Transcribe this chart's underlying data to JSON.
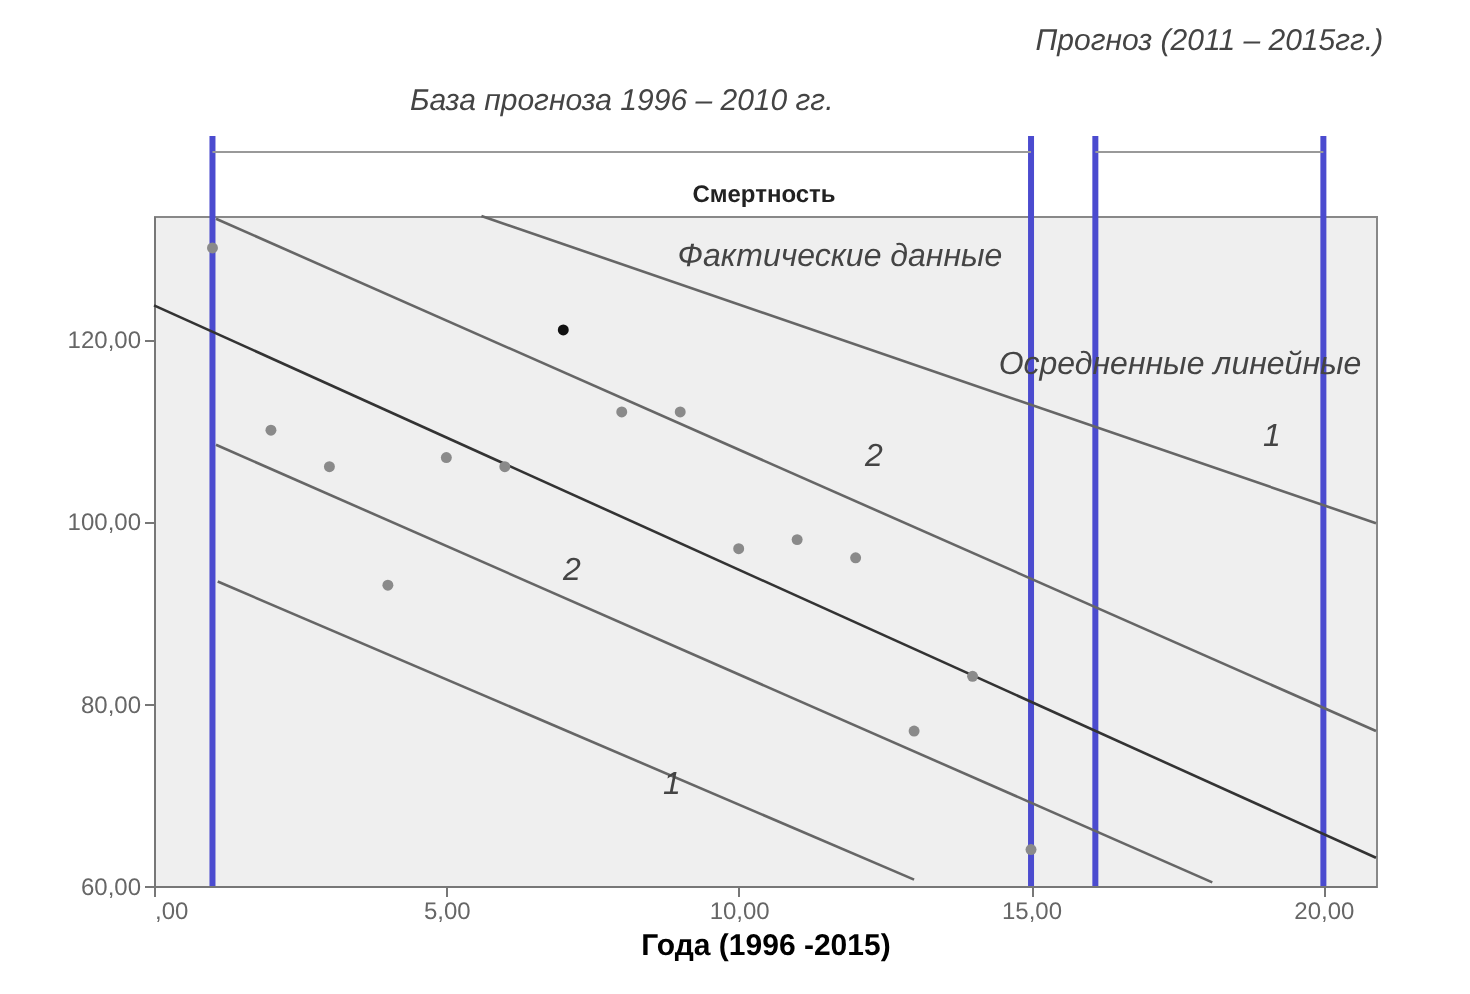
{
  "chart_data": {
    "type": "scatter",
    "title": "Смертность",
    "xlabel": "Года (1996 -2015)",
    "xlim": [
      0,
      20.9
    ],
    "ylim": [
      60,
      133.5
    ],
    "xticks": [
      {
        "value": 0,
        "label": ",00"
      },
      {
        "value": 5,
        "label": "5,00"
      },
      {
        "value": 10,
        "label": "10,00"
      },
      {
        "value": 15,
        "label": "15,00"
      },
      {
        "value": 20,
        "label": "20,00"
      }
    ],
    "yticks": [
      {
        "value": 60,
        "label": "60,00"
      },
      {
        "value": 80,
        "label": "80,00"
      },
      {
        "value": 100,
        "label": "100,00"
      },
      {
        "value": 120,
        "label": "120,00"
      }
    ],
    "grid": false,
    "series": [
      {
        "type": "scatter",
        "marker": "circle",
        "x": [
          1,
          2,
          3,
          4,
          5,
          6,
          7,
          8,
          9,
          10,
          11,
          12,
          13,
          14,
          15
        ],
        "values": [
          130,
          110,
          106,
          93,
          107,
          106,
          121,
          112,
          112,
          97,
          98,
          96,
          77,
          83,
          64
        ],
        "colors": [
          "#8a8a8a",
          "#8a8a8a",
          "#8a8a8a",
          "#8a8a8a",
          "#8a8a8a",
          "#8a8a8a",
          "#111111",
          "#8a8a8a",
          "#8a8a8a",
          "#8a8a8a",
          "#8a8a8a",
          "#8a8a8a",
          "#8a8a8a",
          "#8a8a8a",
          "#8a8a8a"
        ]
      },
      {
        "type": "line",
        "x": [
          0,
          20.9
        ],
        "values": [
          123.7,
          63.1
        ],
        "color": "#333333"
      },
      {
        "type": "line",
        "x": [
          5.6,
          20.9
        ],
        "values": [
          133.5,
          99.8
        ],
        "color": "#666666"
      },
      {
        "type": "line",
        "x": [
          1.06,
          20.9
        ],
        "values": [
          133.2,
          77
        ],
        "color": "#666666"
      },
      {
        "type": "line",
        "x": [
          1.06,
          18.1
        ],
        "values": [
          108.4,
          60.4
        ],
        "color": "#666666"
      },
      {
        "type": "line",
        "x": [
          1.09,
          13
        ],
        "values": [
          93.4,
          60.7
        ],
        "color": "#666666"
      }
    ],
    "ref_lines": [
      {
        "axis": "x",
        "value": 1,
        "color": "#4b4bcf"
      },
      {
        "axis": "x",
        "value": 15,
        "color": "#4b4bcf"
      },
      {
        "axis": "x",
        "value": 16.1,
        "color": "#4b4bcf"
      },
      {
        "axis": "x",
        "value": 20,
        "color": "#4b4bcf"
      }
    ],
    "annotations": [
      "База прогноза 1996 – 2010 гг.",
      "Прогноз (2011 – 2015гг.)",
      "Фактические данные",
      "Осредненные линейные",
      "2",
      "1",
      "2",
      "1"
    ]
  }
}
